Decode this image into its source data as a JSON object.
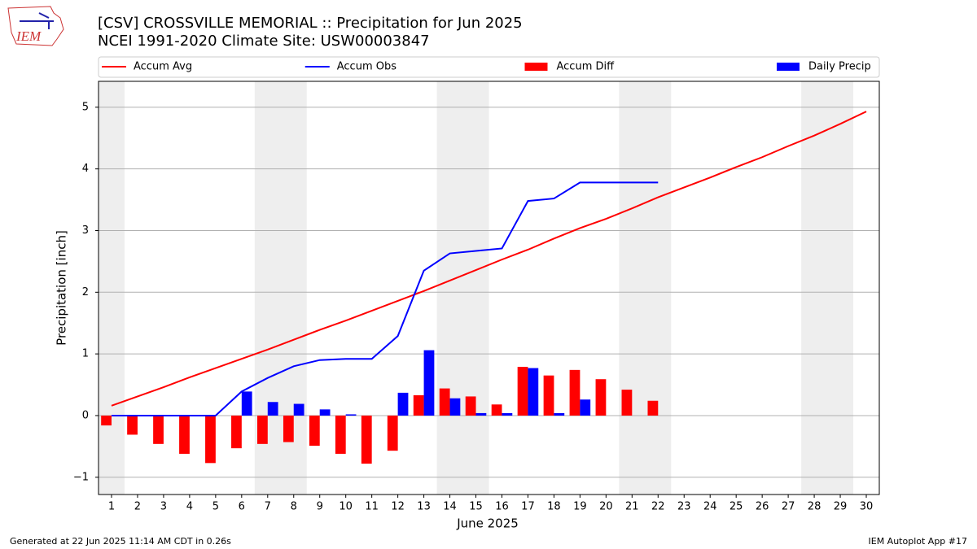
{
  "logo": "IEM",
  "footer": {
    "left": "Generated at 22 Jun 2025 11:14 AM CDT in 0.26s",
    "right": "IEM Autoplot App #17"
  },
  "chart_data": {
    "type": "bar",
    "title": "[CSV] CROSSVILLE MEMORIAL :: Precipitation for Jun 2025",
    "subtitle": "NCEI 1991-2020 Climate Site: USW00003847",
    "x_label": "June 2025",
    "y_label": "Precipitation [inch]",
    "x": [
      1,
      2,
      3,
      4,
      5,
      6,
      7,
      8,
      9,
      10,
      11,
      12,
      13,
      14,
      15,
      16,
      17,
      18,
      19,
      20,
      21,
      22,
      23,
      24,
      25,
      26,
      27,
      28,
      29,
      30
    ],
    "xlim": [
      0.5,
      30.5
    ],
    "xticks": [
      1,
      2,
      3,
      4,
      5,
      6,
      7,
      8,
      9,
      10,
      11,
      12,
      13,
      14,
      15,
      16,
      17,
      18,
      19,
      20,
      21,
      22,
      23,
      24,
      25,
      26,
      27,
      28,
      29,
      30
    ],
    "ylim": [
      -1.28,
      5.42
    ],
    "yticks": [
      {
        "value": -1,
        "label": "−1"
      },
      0,
      1,
      2,
      3,
      4,
      5
    ],
    "grid": true,
    "shaded_spans": [
      [
        0.5,
        1.5
      ],
      [
        6.5,
        8.5
      ],
      [
        13.5,
        15.5
      ],
      [
        20.5,
        22.5
      ],
      [
        27.5,
        29.5
      ]
    ],
    "shade_color": "#eeeeee",
    "legend": "top",
    "series": [
      {
        "name": "Accum Avg",
        "type": "line",
        "color": "#ff0000",
        "values": [
          0.16,
          0.31,
          0.46,
          0.62,
          0.77,
          0.92,
          1.07,
          1.23,
          1.39,
          1.54,
          1.7,
          1.86,
          2.02,
          2.19,
          2.36,
          2.53,
          2.69,
          2.87,
          3.04,
          3.19,
          3.36,
          3.54,
          3.7,
          3.86,
          4.03,
          4.19,
          4.37,
          4.54,
          4.73,
          4.93
        ]
      },
      {
        "name": "Accum Obs",
        "type": "line",
        "color": "#0000ff",
        "values": [
          0,
          0,
          0,
          0,
          0,
          0.39,
          0.61,
          0.8,
          0.9,
          0.92,
          0.92,
          1.29,
          2.35,
          2.63,
          2.67,
          2.71,
          3.48,
          3.52,
          3.78,
          3.78,
          3.78,
          3.78,
          null,
          null,
          null,
          null,
          null,
          null,
          null,
          null
        ]
      },
      {
        "name": "Accum Diff",
        "type": "bar",
        "offset": -0.4,
        "width": 0.4,
        "color": "#ff0000",
        "values": [
          -0.16,
          -0.31,
          -0.46,
          -0.62,
          -0.77,
          -0.53,
          -0.46,
          -0.43,
          -0.49,
          -0.62,
          -0.78,
          -0.57,
          0.33,
          0.44,
          0.31,
          0.18,
          0.79,
          0.65,
          0.74,
          0.59,
          0.42,
          0.24,
          null,
          null,
          null,
          null,
          null,
          null,
          null,
          null
        ]
      },
      {
        "name": "Daily Precip",
        "type": "bar",
        "offset": 0,
        "width": 0.4,
        "color": "#0000ff",
        "values": [
          0,
          0,
          0,
          0,
          0,
          0.39,
          0.22,
          0.19,
          0.1,
          0.02,
          0,
          0.37,
          1.06,
          0.28,
          0.04,
          0.04,
          0.77,
          0.04,
          0.26,
          0,
          0,
          0,
          null,
          null,
          null,
          null,
          null,
          null,
          null,
          null
        ]
      }
    ]
  }
}
